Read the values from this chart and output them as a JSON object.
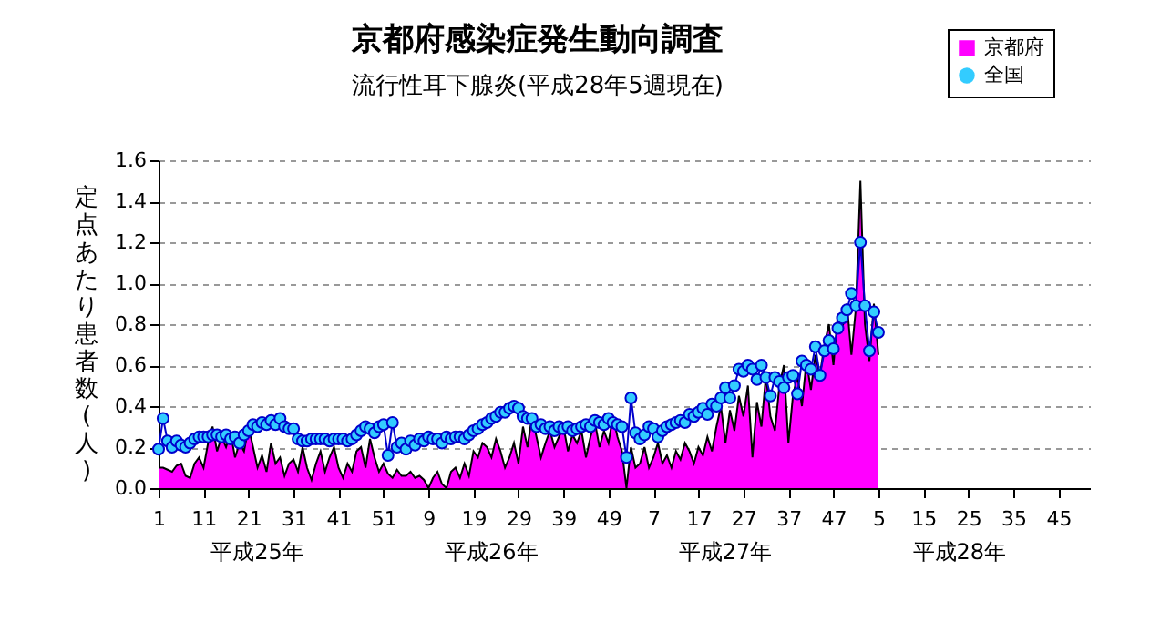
{
  "chart_data": {
    "type": "area",
    "title": "京都府感染症発生動向調査",
    "subtitle": "流行性耳下腺炎(平成28年5週現在)",
    "ylabel": "定点あたり患者数(人)",
    "categories": [
      "1",
      null,
      null,
      null,
      null,
      null,
      null,
      null,
      null,
      null,
      "11",
      null,
      null,
      null,
      null,
      null,
      null,
      null,
      null,
      null,
      "21",
      null,
      null,
      null,
      null,
      null,
      null,
      null,
      null,
      null,
      "31",
      null,
      null,
      null,
      null,
      null,
      null,
      null,
      null,
      null,
      "41",
      null,
      null,
      null,
      null,
      null,
      null,
      null,
      null,
      null,
      "51",
      null,
      null,
      null,
      null,
      null,
      null,
      null,
      null,
      null,
      "9",
      null,
      null,
      null,
      null,
      null,
      null,
      null,
      null,
      null,
      "19",
      null,
      null,
      null,
      null,
      null,
      null,
      null,
      null,
      null,
      "29",
      null,
      null,
      null,
      null,
      null,
      null,
      null,
      null,
      null,
      "39",
      null,
      null,
      null,
      null,
      null,
      null,
      null,
      null,
      null,
      "49",
      null,
      null,
      null,
      null,
      null,
      null,
      null,
      null,
      null,
      "7",
      null,
      null,
      null,
      null,
      null,
      null,
      null,
      null,
      null,
      "17",
      null,
      null,
      null,
      null,
      null,
      null,
      null,
      null,
      null,
      "27",
      null,
      null,
      null,
      null,
      null,
      null,
      null,
      null,
      null,
      "37",
      null,
      null,
      null,
      null,
      null,
      null,
      null,
      null,
      null,
      "47",
      null,
      null,
      null,
      null,
      null,
      null,
      null,
      null,
      null,
      "5",
      null,
      null,
      null,
      null,
      null,
      null,
      null,
      null,
      null,
      "15",
      null,
      null,
      null,
      null,
      null,
      null,
      null,
      null,
      null,
      "25",
      null,
      null,
      null,
      null,
      null,
      null,
      null,
      null,
      null,
      "35",
      null,
      null,
      null,
      null,
      null,
      null,
      null,
      null,
      null,
      "45",
      null,
      null,
      null,
      null,
      null,
      null,
      null
    ],
    "series": [
      {
        "name": "京都府",
        "color": "#ff00ff",
        "values": [
          0.1,
          0.1,
          0.09,
          0.08,
          0.11,
          0.12,
          0.06,
          0.05,
          0.12,
          0.15,
          0.1,
          0.22,
          0.3,
          0.18,
          0.25,
          0.2,
          0.27,
          0.15,
          0.22,
          0.18,
          0.3,
          0.2,
          0.1,
          0.16,
          0.08,
          0.22,
          0.12,
          0.15,
          0.06,
          0.12,
          0.14,
          0.08,
          0.2,
          0.1,
          0.04,
          0.12,
          0.18,
          0.08,
          0.15,
          0.2,
          0.1,
          0.05,
          0.12,
          0.08,
          0.18,
          0.2,
          0.1,
          0.24,
          0.15,
          0.08,
          0.12,
          0.07,
          0.05,
          0.09,
          0.06,
          0.06,
          0.08,
          0.05,
          0.06,
          0.04,
          0.0,
          0.05,
          0.08,
          0.02,
          0.0,
          0.08,
          0.1,
          0.05,
          0.12,
          0.06,
          0.18,
          0.15,
          0.22,
          0.2,
          0.15,
          0.24,
          0.18,
          0.1,
          0.15,
          0.22,
          0.12,
          0.3,
          0.2,
          0.35,
          0.25,
          0.15,
          0.22,
          0.28,
          0.2,
          0.25,
          0.3,
          0.18,
          0.26,
          0.22,
          0.28,
          0.15,
          0.25,
          0.32,
          0.2,
          0.28,
          0.22,
          0.35,
          0.25,
          0.18,
          0.0,
          0.2,
          0.1,
          0.12,
          0.2,
          0.1,
          0.15,
          0.22,
          0.12,
          0.16,
          0.1,
          0.18,
          0.14,
          0.22,
          0.18,
          0.12,
          0.2,
          0.16,
          0.25,
          0.18,
          0.3,
          0.4,
          0.22,
          0.38,
          0.28,
          0.45,
          0.35,
          0.5,
          0.15,
          0.42,
          0.3,
          0.55,
          0.35,
          0.28,
          0.5,
          0.6,
          0.22,
          0.45,
          0.55,
          0.4,
          0.62,
          0.48,
          0.65,
          0.55,
          0.7,
          0.8,
          0.6,
          0.85,
          0.78,
          0.9,
          0.65,
          0.88,
          1.5,
          0.8,
          0.62,
          0.9,
          0.65,
          null,
          null,
          null,
          null,
          null,
          null,
          null,
          null,
          null,
          null,
          null,
          null,
          null,
          null,
          null,
          null,
          null,
          null,
          null,
          null,
          null,
          null,
          null,
          null,
          null,
          null,
          null,
          null,
          null,
          null,
          null,
          null,
          null,
          null,
          null,
          null,
          null,
          null,
          null,
          null,
          null,
          null,
          null,
          null,
          null,
          null,
          null
        ]
      },
      {
        "name": "全国",
        "type": "line",
        "color": "#33ccff",
        "marker": "circle",
        "values": [
          0.19,
          0.34,
          0.23,
          0.2,
          0.23,
          0.21,
          0.2,
          0.22,
          0.24,
          0.25,
          0.25,
          0.25,
          0.26,
          0.26,
          0.25,
          0.26,
          0.24,
          0.25,
          0.22,
          0.26,
          0.28,
          0.31,
          0.3,
          0.32,
          0.31,
          0.33,
          0.31,
          0.34,
          0.3,
          0.29,
          0.29,
          0.24,
          0.23,
          0.23,
          0.24,
          0.24,
          0.24,
          0.24,
          0.23,
          0.24,
          0.24,
          0.24,
          0.23,
          0.24,
          0.26,
          0.28,
          0.3,
          0.29,
          0.27,
          0.3,
          0.31,
          0.16,
          0.32,
          0.2,
          0.22,
          0.19,
          0.23,
          0.21,
          0.24,
          0.23,
          0.25,
          0.24,
          0.24,
          0.22,
          0.25,
          0.24,
          0.25,
          0.25,
          0.24,
          0.26,
          0.28,
          0.29,
          0.31,
          0.32,
          0.34,
          0.35,
          0.37,
          0.37,
          0.39,
          0.4,
          0.39,
          0.35,
          0.34,
          0.34,
          0.3,
          0.31,
          0.29,
          0.3,
          0.28,
          0.3,
          0.29,
          0.3,
          0.28,
          0.29,
          0.3,
          0.31,
          0.3,
          0.33,
          0.32,
          0.31,
          0.34,
          0.32,
          0.31,
          0.3,
          0.15,
          0.44,
          0.27,
          0.24,
          0.26,
          0.3,
          0.29,
          0.25,
          0.28,
          0.3,
          0.31,
          0.32,
          0.33,
          0.32,
          0.36,
          0.35,
          0.37,
          0.39,
          0.36,
          0.41,
          0.4,
          0.44,
          0.49,
          0.44,
          0.5,
          0.58,
          0.57,
          0.6,
          0.58,
          0.53,
          0.6,
          0.54,
          0.45,
          0.54,
          0.52,
          0.49,
          0.54,
          0.55,
          0.46,
          0.62,
          0.6,
          0.58,
          0.69,
          0.55,
          0.67,
          0.72,
          0.68,
          0.78,
          0.83,
          0.87,
          0.95,
          0.89,
          1.2,
          0.89,
          0.67,
          0.86,
          0.76,
          null,
          null,
          null,
          null,
          null,
          null,
          null,
          null,
          null,
          null,
          null,
          null,
          null,
          null,
          null,
          null,
          null,
          null,
          null,
          null,
          null,
          null,
          null,
          null,
          null,
          null,
          null,
          null,
          null,
          null,
          null,
          null,
          null,
          null,
          null,
          null,
          null,
          null,
          null,
          null,
          null,
          null,
          null,
          null,
          null,
          null,
          null
        ]
      }
    ],
    "annotations": [
      "平成25年",
      "平成26年",
      "平成27年",
      "平成28年"
    ],
    "ylim": [
      0,
      1.6
    ],
    "yticks": [
      {
        "value": 0,
        "label": "0.0"
      },
      0.2,
      0.4,
      0.6,
      0.8,
      {
        "value": 1,
        "label": "1.0"
      },
      1.2,
      1.4,
      1.6
    ],
    "grid": "y",
    "legend": "top right"
  }
}
